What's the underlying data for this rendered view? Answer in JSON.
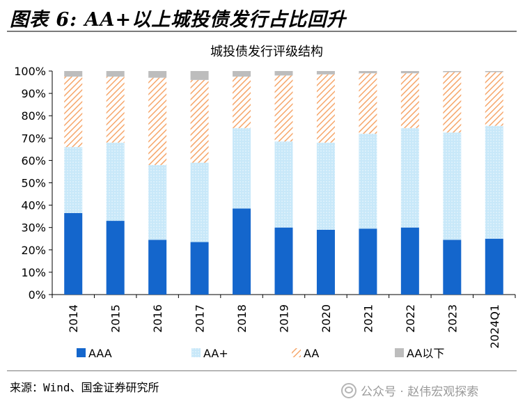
{
  "figure": {
    "title": "图表 6: AA+以上城投债发行占比回升",
    "source": "来源：Wind、国金证券研究所",
    "watermark": "公众号 · 赵伟宏观探索",
    "watermark_icon": "wechat-icon"
  },
  "colors": {
    "AAA": "#1466cc",
    "AA+": "#bfe3f7",
    "AA": "#f6a66a",
    "AA以下": "#bdbdbd"
  },
  "chart_data": {
    "type": "bar",
    "stacked": true,
    "title": "城投债发行评级结构",
    "xlabel": "",
    "ylabel": "",
    "ylim": [
      0,
      100
    ],
    "yticks": [
      "0%",
      "10%",
      "20%",
      "30%",
      "40%",
      "50%",
      "60%",
      "70%",
      "80%",
      "90%",
      "100%"
    ],
    "categories": [
      "2014",
      "2015",
      "2016",
      "2017",
      "2018",
      "2019",
      "2020",
      "2021",
      "2022",
      "2023",
      "2024Q1"
    ],
    "legend_position": "bottom",
    "grid": false,
    "series": [
      {
        "name": "AAA",
        "values": [
          36.5,
          33,
          24.5,
          23.5,
          38.5,
          30,
          29,
          29.5,
          30,
          24.5,
          25
        ]
      },
      {
        "name": "AA+",
        "values": [
          29.5,
          35,
          33.5,
          35.5,
          36,
          38.5,
          39,
          42.5,
          44.5,
          48,
          50.5
        ]
      },
      {
        "name": "AA",
        "values": [
          31.5,
          29.5,
          39,
          37,
          23,
          29.5,
          30.5,
          27,
          24.5,
          27,
          24
        ]
      },
      {
        "name": "AA以下",
        "values": [
          2.5,
          2.5,
          3,
          4,
          2.5,
          2,
          1.5,
          1,
          1,
          0.5,
          0.5
        ]
      }
    ]
  }
}
